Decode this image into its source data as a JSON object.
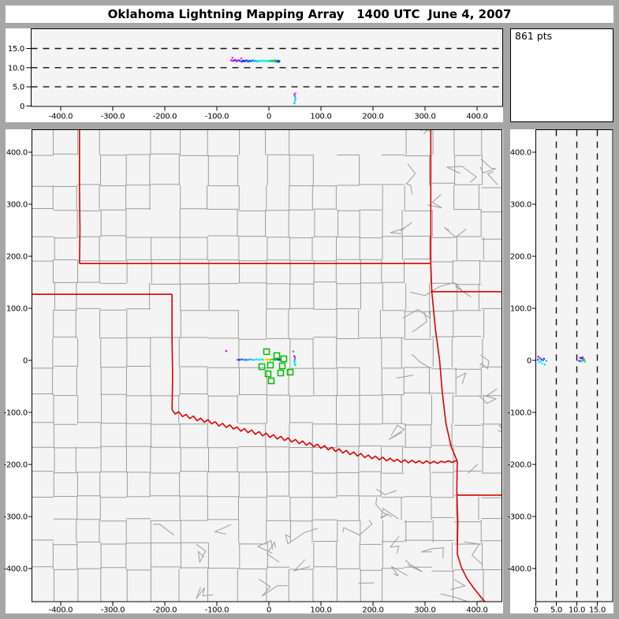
{
  "title": "Oklahoma Lightning Mapping Array   1400 UTC  June 4, 2007",
  "points_label": "861 pts",
  "colors": {
    "frame": "#a6a6a6",
    "page": "#ffffff",
    "plot_bg": "#f4f4f4",
    "panel_bg": "#ffffff",
    "axis": "#000000",
    "grid_dash": "#111111",
    "county": "#9c9c9c",
    "state_border": "#e10000",
    "station": "#00bb00"
  },
  "chart_data": [
    {
      "id": "altitude-vs-east-west",
      "type": "scatter",
      "xlim": [
        -456,
        448
      ],
      "ylim": [
        0,
        20
      ],
      "grid": "dashed-horizontal",
      "x_ticks": [
        {
          "v": -400,
          "label": "-400.0"
        },
        {
          "v": -300,
          "label": "-300.0"
        },
        {
          "v": -200,
          "label": "-200.0"
        },
        {
          "v": -100,
          "label": "-100.0"
        },
        {
          "v": 0,
          "label": "0"
        },
        {
          "v": 100,
          "label": "100.0"
        },
        {
          "v": 200,
          "label": "200.0"
        },
        {
          "v": 300,
          "label": "300.0"
        },
        {
          "v": 400,
          "label": "400.0"
        }
      ],
      "y_ticks": [
        {
          "v": 0,
          "label": "0"
        },
        {
          "v": 5,
          "label": "5.0"
        },
        {
          "v": 10,
          "label": "10.0"
        },
        {
          "v": 15,
          "label": "15.0"
        }
      ],
      "gridlines": [
        5,
        10,
        15
      ],
      "points": [
        [
          -72,
          11.9,
          "#cc00cc"
        ],
        [
          -70,
          12.6,
          "#dd44dd"
        ],
        [
          -68,
          11.8,
          "#bb00ee"
        ],
        [
          -65,
          12.0,
          "#8800ee"
        ],
        [
          -62,
          11.7,
          "#cc00cc"
        ],
        [
          -59,
          11.9,
          "#9922ee"
        ],
        [
          -56,
          11.8,
          "#6633ee"
        ],
        [
          -53,
          12.4,
          "#cc44ee"
        ],
        [
          -52,
          11.6,
          "#2222ee"
        ],
        [
          -49,
          11.8,
          "#0000ee"
        ],
        [
          -46,
          11.7,
          "#1133ee"
        ],
        [
          -43,
          11.9,
          "#0044ee"
        ],
        [
          -40,
          11.6,
          "#0033dd"
        ],
        [
          -37,
          11.8,
          "#0055ee"
        ],
        [
          -34,
          11.7,
          "#0077ff"
        ],
        [
          -31,
          11.9,
          "#0099ff"
        ],
        [
          -28,
          11.7,
          "#00aaff"
        ],
        [
          -25,
          11.8,
          "#00bbff"
        ],
        [
          -22,
          11.6,
          "#00ccff"
        ],
        [
          -19,
          11.8,
          "#00ddff"
        ],
        [
          -16,
          11.7,
          "#00eeff"
        ],
        [
          -13,
          11.9,
          "#00ffff"
        ],
        [
          -10,
          11.7,
          "#00ffee"
        ],
        [
          -7,
          11.8,
          "#00eedd"
        ],
        [
          -4,
          11.6,
          "#00ffdd"
        ],
        [
          -1,
          11.8,
          "#00eecc"
        ],
        [
          2,
          11.7,
          "#00ddaa"
        ],
        [
          5,
          11.8,
          "#00cc66"
        ],
        [
          8,
          11.7,
          "#00cc44"
        ],
        [
          11,
          11.9,
          "#22bb33"
        ],
        [
          13,
          11.6,
          "#00aa33"
        ],
        [
          16,
          11.8,
          "#0055cc"
        ],
        [
          18,
          11.5,
          "#1144bb"
        ],
        [
          20,
          11.7,
          "#0033aa"
        ],
        [
          49,
          0.7,
          "#00ccee"
        ],
        [
          50,
          1.3,
          "#00ddff"
        ],
        [
          51,
          1.9,
          "#00bbff"
        ],
        [
          50,
          2.5,
          "#2299ff"
        ],
        [
          49,
          3.0,
          "#cc33dd"
        ],
        [
          51,
          3.3,
          "#dd55ee"
        ]
      ]
    },
    {
      "id": "plan-view-map",
      "type": "scatter",
      "xlim": [
        -456,
        448
      ],
      "ylim": [
        -464,
        443
      ],
      "grid": "none",
      "x_ticks": [
        {
          "v": -400,
          "label": "-400.0"
        },
        {
          "v": -300,
          "label": "-300.0"
        },
        {
          "v": -200,
          "label": "-200.0"
        },
        {
          "v": -100,
          "label": "-100.0"
        },
        {
          "v": 0,
          "label": "0"
        },
        {
          "v": 100,
          "label": "100.0"
        },
        {
          "v": 200,
          "label": "200.0"
        },
        {
          "v": 300,
          "label": "300.0"
        },
        {
          "v": 400,
          "label": "400.0"
        }
      ],
      "y_ticks": [
        {
          "v": 400,
          "label": "400.0"
        },
        {
          "v": 300,
          "label": "300.0"
        },
        {
          "v": 200,
          "label": "200.0"
        },
        {
          "v": 100,
          "label": "100.0"
        },
        {
          "v": 0,
          "label": "0"
        },
        {
          "v": -100,
          "label": "-100.0"
        },
        {
          "v": -200,
          "label": "-200.0"
        },
        {
          "v": -300,
          "label": "-300.0"
        },
        {
          "v": -400,
          "label": "-400.0"
        }
      ],
      "stations": [
        [
          -4.5,
          16.7
        ],
        [
          15.2,
          9.1
        ],
        [
          28.8,
          3.0
        ],
        [
          -13.6,
          -12.1
        ],
        [
          3.0,
          -9.1
        ],
        [
          25.8,
          -10.6
        ],
        [
          40.9,
          -22.7
        ],
        [
          22.7,
          -24.2
        ],
        [
          -1.5,
          -25.8
        ],
        [
          4.5,
          -39.4
        ]
      ],
      "state_borders": [
        [
          [
            -364,
            444
          ],
          [
            -364,
            330
          ],
          [
            -363,
            250
          ],
          [
            -364,
            186
          ]
        ],
        [
          [
            -364,
            186
          ],
          [
            311,
            186
          ]
        ],
        [
          [
            -456,
            127
          ],
          [
            -186,
            127
          ]
        ],
        [
          [
            -186,
            127
          ],
          [
            -186,
            40
          ],
          [
            -185,
            -30
          ],
          [
            -186,
            -95
          ]
        ],
        [
          [
            -186,
            -95
          ],
          [
            -180,
            -103
          ],
          [
            -173,
            -99
          ],
          [
            -166,
            -108
          ],
          [
            -159,
            -104
          ],
          [
            -152,
            -112
          ],
          [
            -145,
            -107
          ],
          [
            -138,
            -116
          ],
          [
            -131,
            -111
          ],
          [
            -124,
            -119
          ],
          [
            -117,
            -114
          ],
          [
            -110,
            -122
          ],
          [
            -103,
            -118
          ],
          [
            -96,
            -126
          ],
          [
            -89,
            -121
          ],
          [
            -82,
            -129
          ],
          [
            -75,
            -124
          ],
          [
            -68,
            -132
          ],
          [
            -61,
            -128
          ],
          [
            -54,
            -136
          ],
          [
            -47,
            -131
          ],
          [
            -40,
            -139
          ],
          [
            -33,
            -134
          ],
          [
            -26,
            -142
          ],
          [
            -19,
            -137
          ],
          [
            -12,
            -145
          ],
          [
            -5,
            -140
          ],
          [
            2,
            -148
          ],
          [
            9,
            -143
          ],
          [
            16,
            -151
          ],
          [
            23,
            -146
          ],
          [
            30,
            -154
          ],
          [
            37,
            -149
          ],
          [
            44,
            -157
          ],
          [
            51,
            -152
          ],
          [
            58,
            -160
          ],
          [
            65,
            -155
          ],
          [
            72,
            -163
          ],
          [
            79,
            -158
          ],
          [
            86,
            -166
          ],
          [
            93,
            -161
          ],
          [
            100,
            -169
          ],
          [
            107,
            -164
          ],
          [
            114,
            -172
          ],
          [
            121,
            -167
          ],
          [
            128,
            -175
          ],
          [
            135,
            -170
          ],
          [
            142,
            -178
          ],
          [
            149,
            -173
          ],
          [
            156,
            -181
          ],
          [
            163,
            -176
          ],
          [
            170,
            -184
          ],
          [
            177,
            -179
          ],
          [
            184,
            -187
          ],
          [
            191,
            -182
          ],
          [
            198,
            -189
          ],
          [
            205,
            -184
          ],
          [
            212,
            -191
          ],
          [
            219,
            -186
          ],
          [
            226,
            -193
          ],
          [
            233,
            -188
          ],
          [
            240,
            -194
          ],
          [
            247,
            -190
          ],
          [
            254,
            -196
          ],
          [
            261,
            -191
          ],
          [
            268,
            -197
          ],
          [
            275,
            -192
          ],
          [
            282,
            -197
          ],
          [
            289,
            -193
          ],
          [
            296,
            -198
          ],
          [
            303,
            -193
          ],
          [
            310,
            -198
          ],
          [
            317,
            -194
          ],
          [
            324,
            -198
          ],
          [
            331,
            -194
          ],
          [
            338,
            -196
          ],
          [
            345,
            -193
          ],
          [
            352,
            -196
          ],
          [
            358,
            -193
          ],
          [
            362,
            -194
          ]
        ],
        [
          [
            311,
            444
          ],
          [
            311,
            186
          ]
        ],
        [
          [
            311,
            132
          ],
          [
            449,
            132
          ]
        ],
        [
          [
            311,
            186
          ],
          [
            313,
            132
          ],
          [
            320,
            60
          ],
          [
            328,
            0
          ],
          [
            333,
            -60
          ],
          [
            340,
            -120
          ],
          [
            350,
            -165
          ],
          [
            362,
            -194
          ]
        ],
        [
          [
            362,
            -194
          ],
          [
            361,
            -250
          ],
          [
            363,
            -310
          ],
          [
            362,
            -372
          ]
        ],
        [
          [
            362,
            -259
          ],
          [
            449,
            -259
          ]
        ],
        [
          [
            362,
            -372
          ],
          [
            370,
            -398
          ],
          [
            381,
            -420
          ],
          [
            394,
            -438
          ],
          [
            405,
            -452
          ],
          [
            417,
            -466
          ]
        ]
      ],
      "points": [
        [
          -82,
          18,
          "#dd00dd"
        ],
        [
          -60,
          1,
          "#2244ee"
        ],
        [
          -56,
          1,
          "#0033cc"
        ],
        [
          -52,
          2,
          "#0055ee"
        ],
        [
          -48,
          1,
          "#0077ff"
        ],
        [
          -44,
          1,
          "#0066ee"
        ],
        [
          -40,
          1,
          "#0088ff"
        ],
        [
          -36,
          2,
          "#00aaff"
        ],
        [
          -32,
          1,
          "#00bbff"
        ],
        [
          -28,
          1,
          "#00ccff"
        ],
        [
          -24,
          2,
          "#00ddff"
        ],
        [
          -20,
          1,
          "#00eeff"
        ],
        [
          -17,
          1,
          "#00ffff"
        ],
        [
          -14,
          2,
          "#00ffee"
        ],
        [
          -11,
          1,
          "#00eedd"
        ],
        [
          -8,
          1,
          "#ffee00"
        ],
        [
          -5,
          2,
          "#ffcc00"
        ],
        [
          -2,
          1,
          "#ffaa00"
        ],
        [
          0,
          2,
          "#eedd00"
        ],
        [
          3,
          1,
          "#88dd00"
        ],
        [
          6,
          2,
          "#33cc22"
        ],
        [
          9,
          1,
          "#00cc44"
        ],
        [
          12,
          1,
          "#00bb33"
        ],
        [
          15,
          2,
          "#00aa44"
        ],
        [
          18,
          1,
          "#0044cc"
        ],
        [
          21,
          1,
          "#2233bb"
        ],
        [
          47,
          17,
          "#cc44ee"
        ],
        [
          49,
          8,
          "#cc00cc"
        ],
        [
          50,
          5,
          "#8844ff"
        ],
        [
          50,
          2,
          "#22aaff"
        ],
        [
          49,
          -1,
          "#00ccff"
        ],
        [
          50,
          -4,
          "#00eeff"
        ],
        [
          49,
          -7,
          "#00ffff"
        ],
        [
          51,
          -9,
          "#00ddee"
        ]
      ]
    },
    {
      "id": "altitude-vs-north-south",
      "type": "scatter",
      "xlim": [
        0,
        18.8
      ],
      "ylim": [
        -464,
        443
      ],
      "grid": "dashed-vertical",
      "x_ticks": [
        {
          "v": 0,
          "label": "0"
        },
        {
          "v": 5,
          "label": "5.0"
        },
        {
          "v": 10,
          "label": "10.0"
        },
        {
          "v": 15,
          "label": "15.0"
        }
      ],
      "y_ticks": [
        {
          "v": 400,
          "label": "400.0"
        },
        {
          "v": 300,
          "label": "300.0"
        },
        {
          "v": 200,
          "label": "200.0"
        },
        {
          "v": 100,
          "label": "100.0"
        },
        {
          "v": 0,
          "label": "0"
        },
        {
          "v": -100,
          "label": "-100.0"
        },
        {
          "v": -200,
          "label": "-200.0"
        },
        {
          "v": -300,
          "label": "-300.0"
        },
        {
          "v": -400,
          "label": "-400.0"
        }
      ],
      "gridlines": [
        5,
        10,
        15
      ],
      "points": [
        [
          0.6,
          7,
          "#cc00cc"
        ],
        [
          1.0,
          4,
          "#9933ff"
        ],
        [
          1.4,
          2,
          "#2244ee"
        ],
        [
          1.8,
          0,
          "#0099ff"
        ],
        [
          1.2,
          -2,
          "#00ccff"
        ],
        [
          0.8,
          -4,
          "#00eeff"
        ],
        [
          1.6,
          -6,
          "#00ffff"
        ],
        [
          2.2,
          -8,
          "#00ddcc"
        ],
        [
          0.5,
          1,
          "#0066ff"
        ],
        [
          2.0,
          3,
          "#4422dd"
        ],
        [
          2.6,
          -1,
          "#00bbee"
        ],
        [
          10.8,
          5,
          "#cc00cc"
        ],
        [
          11.2,
          4,
          "#2200ee"
        ],
        [
          11.5,
          3,
          "#0077ff"
        ],
        [
          11.8,
          2,
          "#00ccff"
        ],
        [
          11.3,
          1,
          "#00eeee"
        ],
        [
          11.6,
          0,
          "#00cc44"
        ],
        [
          11.9,
          -1,
          "#ff8800"
        ],
        [
          11.1,
          -2,
          "#00aaff"
        ],
        [
          11.4,
          6,
          "#8822ff"
        ],
        [
          12.0,
          -3,
          "#00ffcc"
        ],
        [
          11.7,
          1,
          "#ff6600"
        ],
        [
          10.6,
          -1,
          "#4400dd"
        ]
      ]
    }
  ]
}
